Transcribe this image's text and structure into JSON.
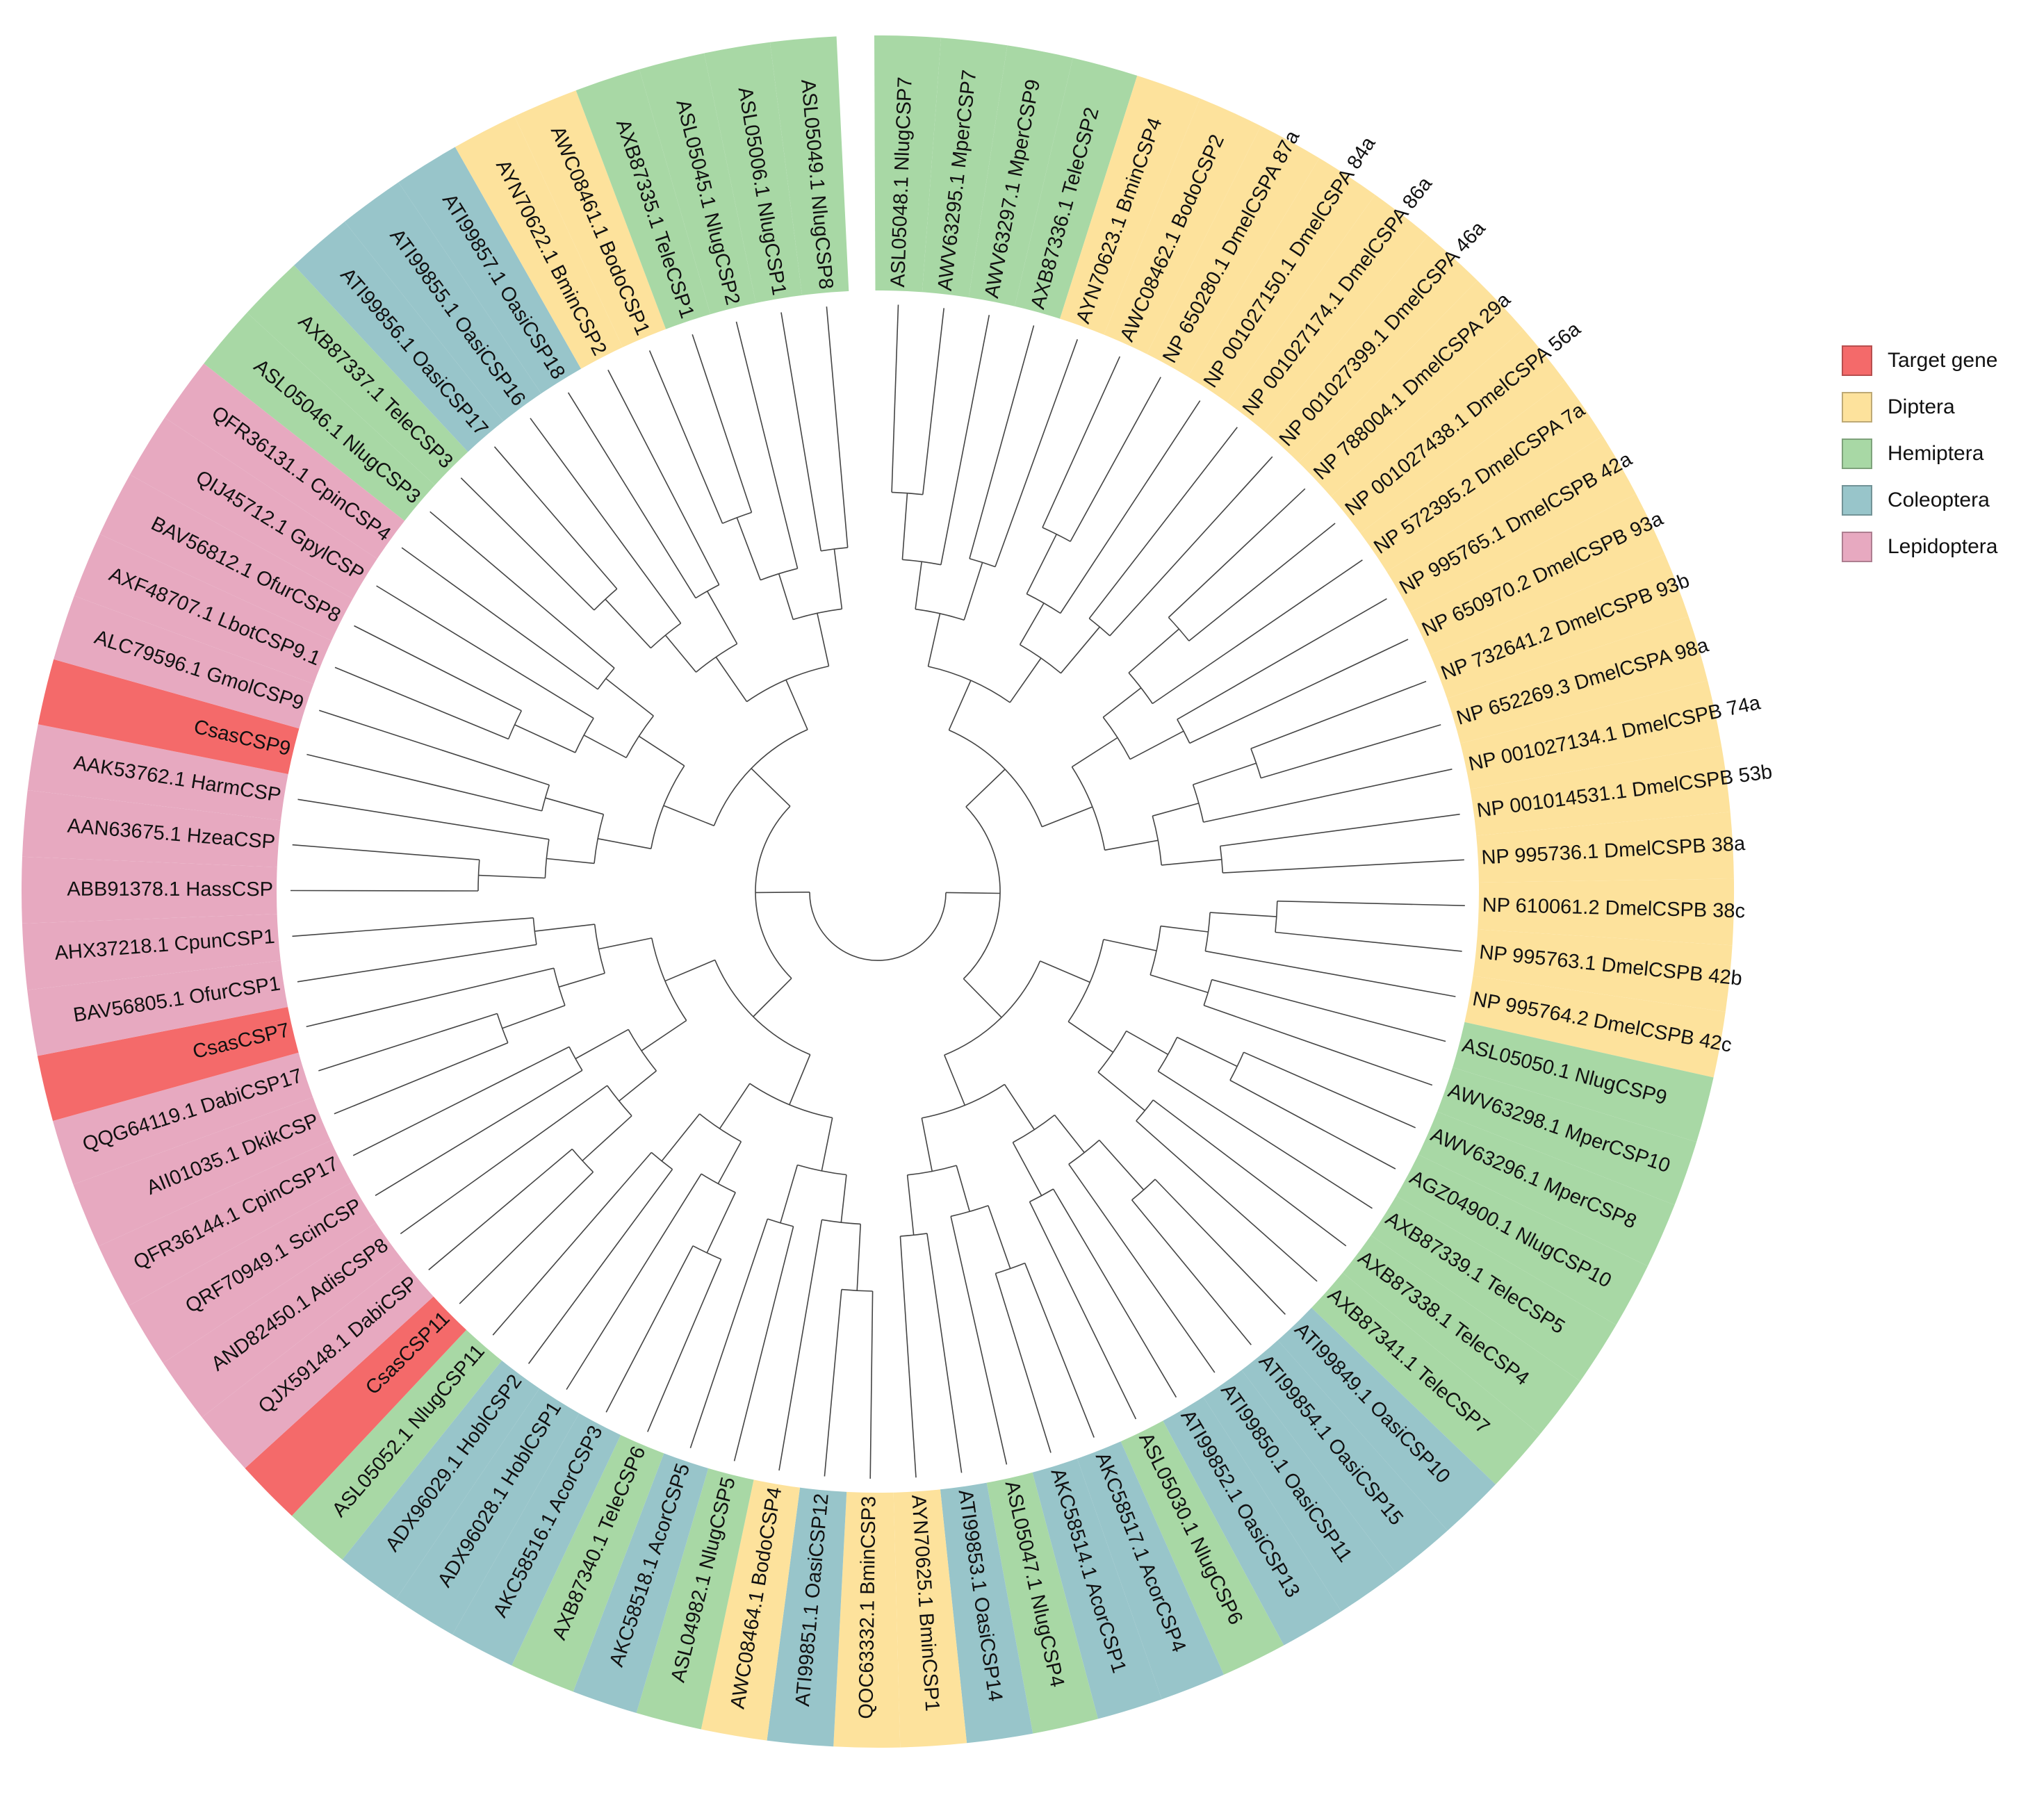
{
  "figure": {
    "type": "circular phylogenetic tree",
    "subject": "chemosensory proteins (CSP)"
  },
  "colors": {
    "target": "#f46a6a",
    "diptera": "#fde29c",
    "hemiptera": "#a8d8a5",
    "coleoptera": "#98c5ca",
    "lepidoptera": "#e7a9c0",
    "branch": "#444444"
  },
  "legend": [
    {
      "key": "target",
      "label": "Target gene"
    },
    {
      "key": "diptera",
      "label": "Diptera"
    },
    {
      "key": "hemiptera",
      "label": "Hemiptera"
    },
    {
      "key": "coleoptera",
      "label": "Coleoptera"
    },
    {
      "key": "lepidoptera",
      "label": "Lepidoptera"
    }
  ],
  "tips": [
    {
      "label": "ASL05048.1 NlugCSP7",
      "group": "hemiptera"
    },
    {
      "label": "AWV63295.1 MperCSP7",
      "group": "hemiptera"
    },
    {
      "label": "AWV63297.1 MperCSP9",
      "group": "hemiptera"
    },
    {
      "label": "AXB87336.1 TeleCSP2",
      "group": "hemiptera"
    },
    {
      "label": "AYN70623.1 BminCSP4",
      "group": "diptera"
    },
    {
      "label": "AWC08462.1 BodoCSP2",
      "group": "diptera"
    },
    {
      "label": "NP 650280.1 DmelCSPA 87a",
      "group": "diptera"
    },
    {
      "label": "NP 001027150.1 DmelCSPA 84a",
      "group": "diptera"
    },
    {
      "label": "NP 001027174.1 DmelCSPA 86a",
      "group": "diptera"
    },
    {
      "label": "NP 001027399.1 DmelCSPA 46a",
      "group": "diptera"
    },
    {
      "label": "NP 788004.1 DmelCSPA 29a",
      "group": "diptera"
    },
    {
      "label": "NP 001027438.1 DmelCSPA 56a",
      "group": "diptera"
    },
    {
      "label": "NP 572395.2 DmelCSPA 7a",
      "group": "diptera"
    },
    {
      "label": "NP 995765.1 DmelCSPB 42a",
      "group": "diptera"
    },
    {
      "label": "NP 650970.2 DmelCSPB 93a",
      "group": "diptera"
    },
    {
      "label": "NP 732641.2 DmelCSPB 93b",
      "group": "diptera"
    },
    {
      "label": "NP 652269.3 DmelCSPA 98a",
      "group": "diptera"
    },
    {
      "label": "NP 001027134.1 DmelCSPB 74a",
      "group": "diptera"
    },
    {
      "label": "NP 001014531.1 DmelCSPB 53b",
      "group": "diptera"
    },
    {
      "label": "NP 995736.1 DmelCSPB 38a",
      "group": "diptera"
    },
    {
      "label": "NP 610061.2 DmelCSPB 38c",
      "group": "diptera"
    },
    {
      "label": "NP 995763.1 DmelCSPB 42b",
      "group": "diptera"
    },
    {
      "label": "NP 995764.2 DmelCSPB 42c",
      "group": "diptera"
    },
    {
      "label": "ASL05050.1 NlugCSP9",
      "group": "hemiptera"
    },
    {
      "label": "AWV63298.1 MperCSP10",
      "group": "hemiptera"
    },
    {
      "label": "AWV63296.1 MperCSP8",
      "group": "hemiptera"
    },
    {
      "label": "AGZ04900.1 NlugCSP10",
      "group": "hemiptera"
    },
    {
      "label": "AXB87339.1 TeleCSP5",
      "group": "hemiptera"
    },
    {
      "label": "AXB87338.1 TeleCSP4",
      "group": "hemiptera"
    },
    {
      "label": "AXB87341.1 TeleCSP7",
      "group": "hemiptera"
    },
    {
      "label": "ATI99849.1 OasiCSP10",
      "group": "coleoptera"
    },
    {
      "label": "ATI99854.1 OasiCSP15",
      "group": "coleoptera"
    },
    {
      "label": "ATI99850.1 OasiCSP11",
      "group": "coleoptera"
    },
    {
      "label": "ATI99852.1 OasiCSP13",
      "group": "coleoptera"
    },
    {
      "label": "ASL05030.1 NlugCSP6",
      "group": "hemiptera"
    },
    {
      "label": "AKC58517.1 AcorCSP4",
      "group": "coleoptera"
    },
    {
      "label": "AKC58514.1 AcorCSP1",
      "group": "coleoptera"
    },
    {
      "label": "ASL05047.1 NlugCSP4",
      "group": "hemiptera"
    },
    {
      "label": "ATI99853.1 OasiCSP14",
      "group": "coleoptera"
    },
    {
      "label": "AYN70625.1 BminCSP1",
      "group": "diptera"
    },
    {
      "label": "QOC63332.1 BminCSP3",
      "group": "diptera"
    },
    {
      "label": "ATI99851.1 OasiCSP12",
      "group": "coleoptera"
    },
    {
      "label": "AWC08464.1 BodoCSP4",
      "group": "diptera"
    },
    {
      "label": "ASL04982.1 NlugCSP5",
      "group": "hemiptera"
    },
    {
      "label": "AKC58518.1 AcorCSP5",
      "group": "coleoptera"
    },
    {
      "label": "AXB87340.1 TeleCSP6",
      "group": "hemiptera"
    },
    {
      "label": "AKC58516.1 AcorCSP3",
      "group": "coleoptera"
    },
    {
      "label": "ADX96028.1 HoblCSP1",
      "group": "coleoptera"
    },
    {
      "label": "ADX96029.1 HoblCSP2",
      "group": "coleoptera"
    },
    {
      "label": "ASL05052.1 NlugCSP11",
      "group": "hemiptera"
    },
    {
      "label": "CsasCSP11",
      "group": "target"
    },
    {
      "label": "QJX59148.1 DabiCSP",
      "group": "lepidoptera"
    },
    {
      "label": "AND82450.1 AdisCSP8",
      "group": "lepidoptera"
    },
    {
      "label": "QRF70949.1 ScinCSP",
      "group": "lepidoptera"
    },
    {
      "label": "QFR36144.1 CpinCSP17",
      "group": "lepidoptera"
    },
    {
      "label": "AII01035.1 DkikCSP",
      "group": "lepidoptera"
    },
    {
      "label": "QQG64119.1 DabiCSP17",
      "group": "lepidoptera"
    },
    {
      "label": "CsasCSP7",
      "group": "target"
    },
    {
      "label": "BAV56805.1 OfurCSP1",
      "group": "lepidoptera"
    },
    {
      "label": "AHX37218.1 CpunCSP1",
      "group": "lepidoptera"
    },
    {
      "label": "ABB91378.1 HassCSP",
      "group": "lepidoptera"
    },
    {
      "label": "AAN63675.1 HzeaCSP",
      "group": "lepidoptera"
    },
    {
      "label": "AAK53762.1 HarmCSP",
      "group": "lepidoptera"
    },
    {
      "label": "CsasCSP9",
      "group": "target"
    },
    {
      "label": "ALC79596.1 GmolCSP9",
      "group": "lepidoptera"
    },
    {
      "label": "AXF48707.1 LbotCSP9.1",
      "group": "lepidoptera"
    },
    {
      "label": "BAV56812.1 OfurCSP8",
      "group": "lepidoptera"
    },
    {
      "label": "QIJ45712.1 GpylCSP",
      "group": "lepidoptera"
    },
    {
      "label": "QFR36131.1 CpinCSP4",
      "group": "lepidoptera"
    },
    {
      "label": "ASL05046.1 NlugCSP3",
      "group": "hemiptera"
    },
    {
      "label": "AXB87337.1 TeleCSP3",
      "group": "hemiptera"
    },
    {
      "label": "ATI99856.1 OasiCSP17",
      "group": "coleoptera"
    },
    {
      "label": "ATI99855.1 OasiCSP16",
      "group": "coleoptera"
    },
    {
      "label": "ATI99857.1 OasiCSP18",
      "group": "coleoptera"
    },
    {
      "label": "AYN70622.1 BminCSP2",
      "group": "diptera"
    },
    {
      "label": "AWC08461.1 BodoCSP1",
      "group": "diptera"
    },
    {
      "label": "AXB87335.1 TeleCSP1",
      "group": "hemiptera"
    },
    {
      "label": "ASL05045.1 NlugCSP2",
      "group": "hemiptera"
    },
    {
      "label": "ASL05006.1 NlugCSP1",
      "group": "hemiptera"
    },
    {
      "label": "ASL05049.1 NlugCSP8",
      "group": "hemiptera"
    }
  ]
}
